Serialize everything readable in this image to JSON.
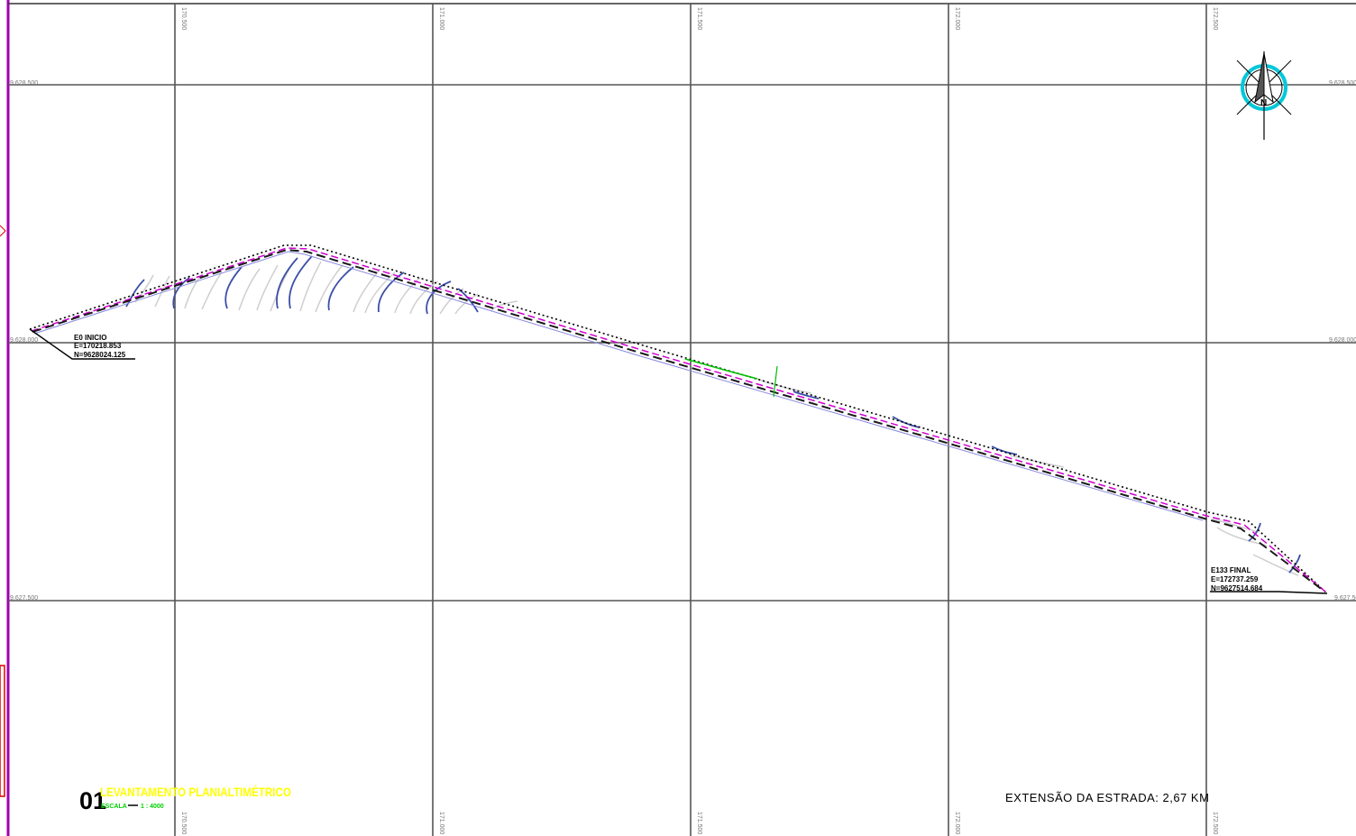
{
  "grid": {
    "easting_labels": [
      "170.500",
      "171.000",
      "171.500",
      "172.000",
      "172.500"
    ],
    "northing_labels": [
      "9.628.500",
      "9.628.000",
      "9.627.500"
    ]
  },
  "stations": {
    "start": {
      "name": "E0 INICIO",
      "e": "E=170218.853",
      "n": "N=9628024.125"
    },
    "end": {
      "name": "E133 FINAL",
      "e": "E=172737.259",
      "n": "N=9627514.684"
    }
  },
  "title": {
    "number": "01",
    "main": "LEVANTAMENTO PLANIALTIMÉTRICO",
    "scale_label": "ESCALA",
    "scale_value": "1 : 4000"
  },
  "road_length": "EXTENSÃO DA ESTRADA: 2,67 KM",
  "north_arrow": {
    "icon": "north-arrow-icon",
    "letter": "N"
  },
  "colors": {
    "frame": "#a000b0",
    "grid": "#555555",
    "contour_major": "#3c4fa8",
    "contour_minor": "#cfcfcf",
    "road_axis": "#d000d0",
    "title": "#ffff00",
    "scale": "#00d000",
    "compass_ring": "#00c8d8"
  }
}
